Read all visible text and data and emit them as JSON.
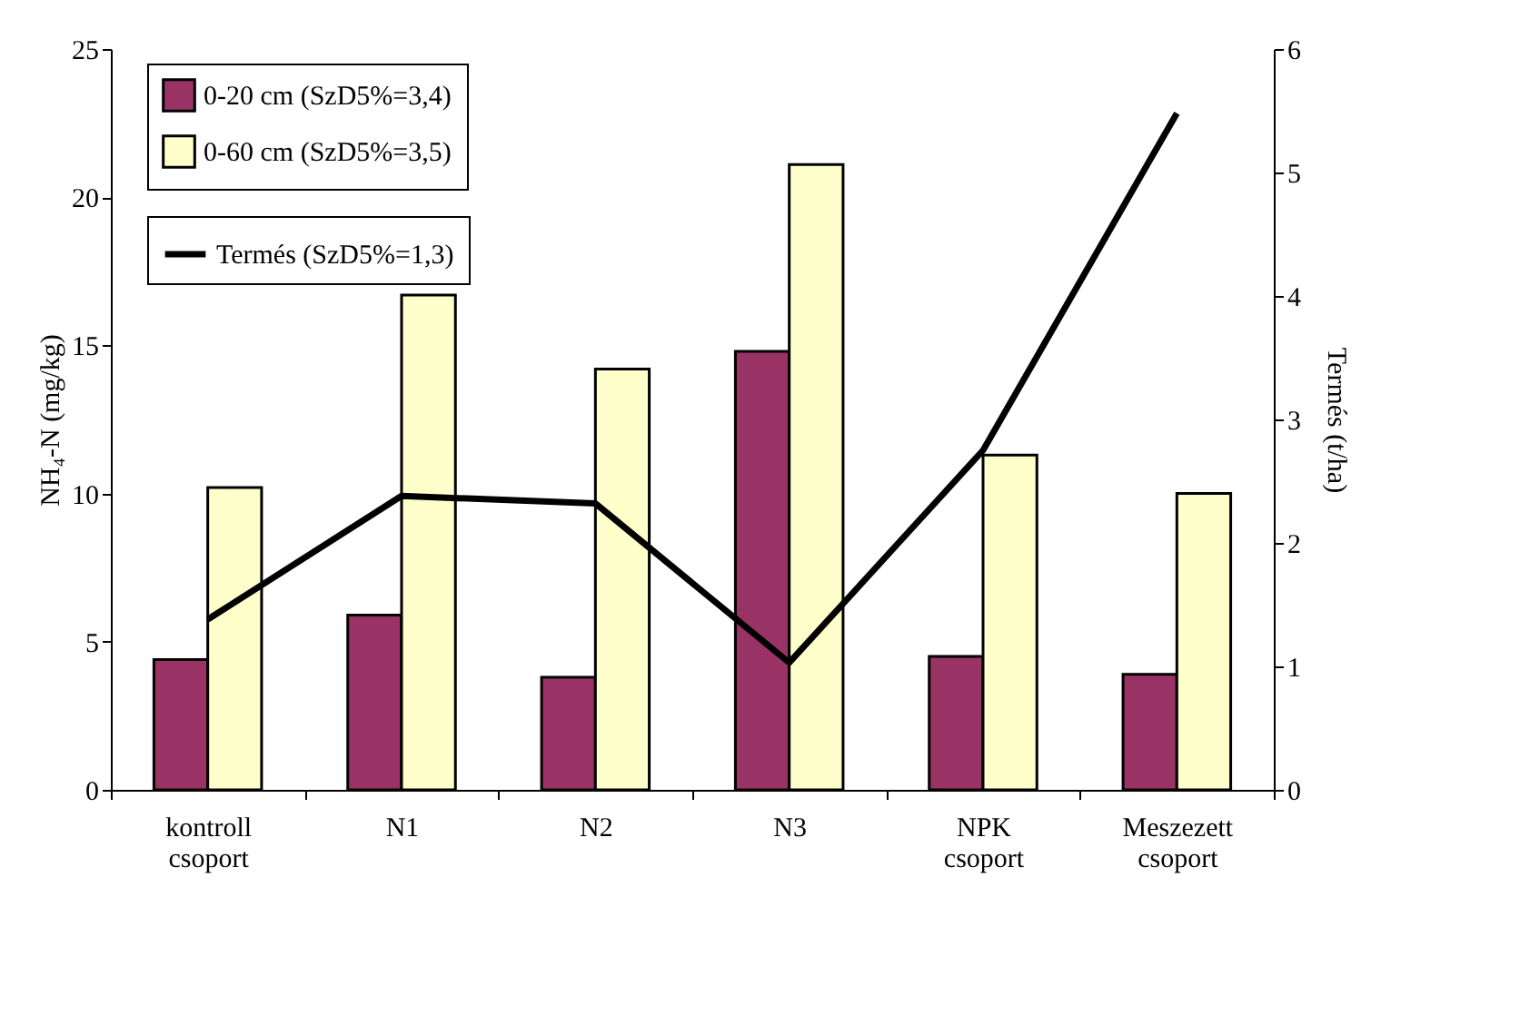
{
  "chart_data": {
    "type": "bar",
    "categories": [
      "kontroll\ncsoport",
      "N1",
      "N2",
      "N3",
      "NPK\ncsoport",
      "Meszezett\ncsoport"
    ],
    "ylabel": "NH₄-N (mg/kg)",
    "y2label": "Termés (t/ha)",
    "ylim": [
      0,
      25
    ],
    "yticks": [
      0,
      5,
      10,
      15,
      20,
      25
    ],
    "y2lim": [
      0,
      6
    ],
    "y2ticks": [
      0,
      1,
      2,
      3,
      4,
      5,
      6
    ],
    "grid": false,
    "legend": "top left",
    "series": [
      {
        "name": "0-20 cm (SzD5%=3,4)",
        "color": "#993366",
        "values": [
          4.4,
          5.9,
          3.8,
          14.8,
          4.5,
          3.9
        ]
      },
      {
        "name": "0-60 cm (SzD5%=3,5)",
        "color": "#ffffcc",
        "values": [
          10.2,
          16.7,
          14.2,
          21.1,
          11.3,
          10.0
        ]
      },
      {
        "name": "Termés (SzD5%=1,3)",
        "type": "line",
        "axis": "y2",
        "color": "#000000",
        "marker": "none",
        "line_style": "solid",
        "values": [
          1.38,
          2.38,
          2.32,
          1.03,
          2.75,
          5.48
        ]
      }
    ]
  }
}
